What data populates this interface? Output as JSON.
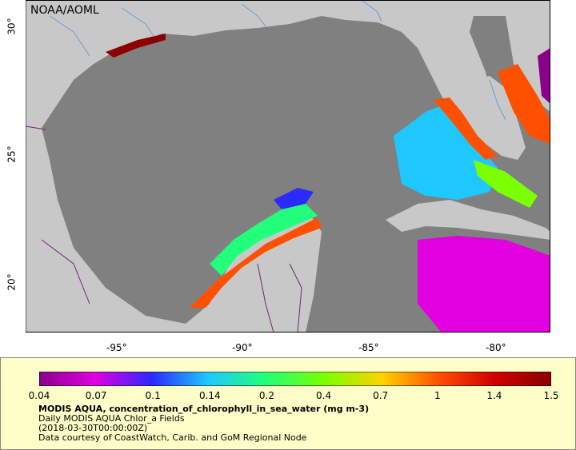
{
  "map": {
    "credit": "NOAA/AOML",
    "lon_ticks": [
      "-95°",
      "-90°",
      "-85°",
      "-80°"
    ],
    "lat_ticks": [
      "30°",
      "25°",
      "20°"
    ],
    "lon_range": [
      -98,
      -78
    ],
    "lat_range": [
      18,
      31
    ],
    "colors": {
      "land": "#c8c8c8",
      "ocean_no_data": "#808080",
      "rivers": "#6a9ed0",
      "borders": "#6b2a6b"
    }
  },
  "legend": {
    "scale_ticks": [
      "0.04",
      "0.07",
      "0.1",
      "0.14",
      "0.2",
      "0.4",
      "0.7",
      "1",
      "1.4",
      "1.5"
    ],
    "scale_colors": [
      "#8b008b",
      "#e000e0",
      "#2a2aff",
      "#1ec8ff",
      "#22ff7a",
      "#7cff00",
      "#ffd200",
      "#ff5000",
      "#d00000",
      "#8b0000"
    ],
    "title": "MODIS AQUA, concentration_of_chlorophyll_in_sea_water (mg m-3)",
    "subtitle": "Daily MODIS AQUA Chlor_a Fields",
    "date": "(2018-03-30T00:00:00Z)",
    "source": "Data courtesy of CoastWatch, Carib. and GoM Regional Node"
  }
}
